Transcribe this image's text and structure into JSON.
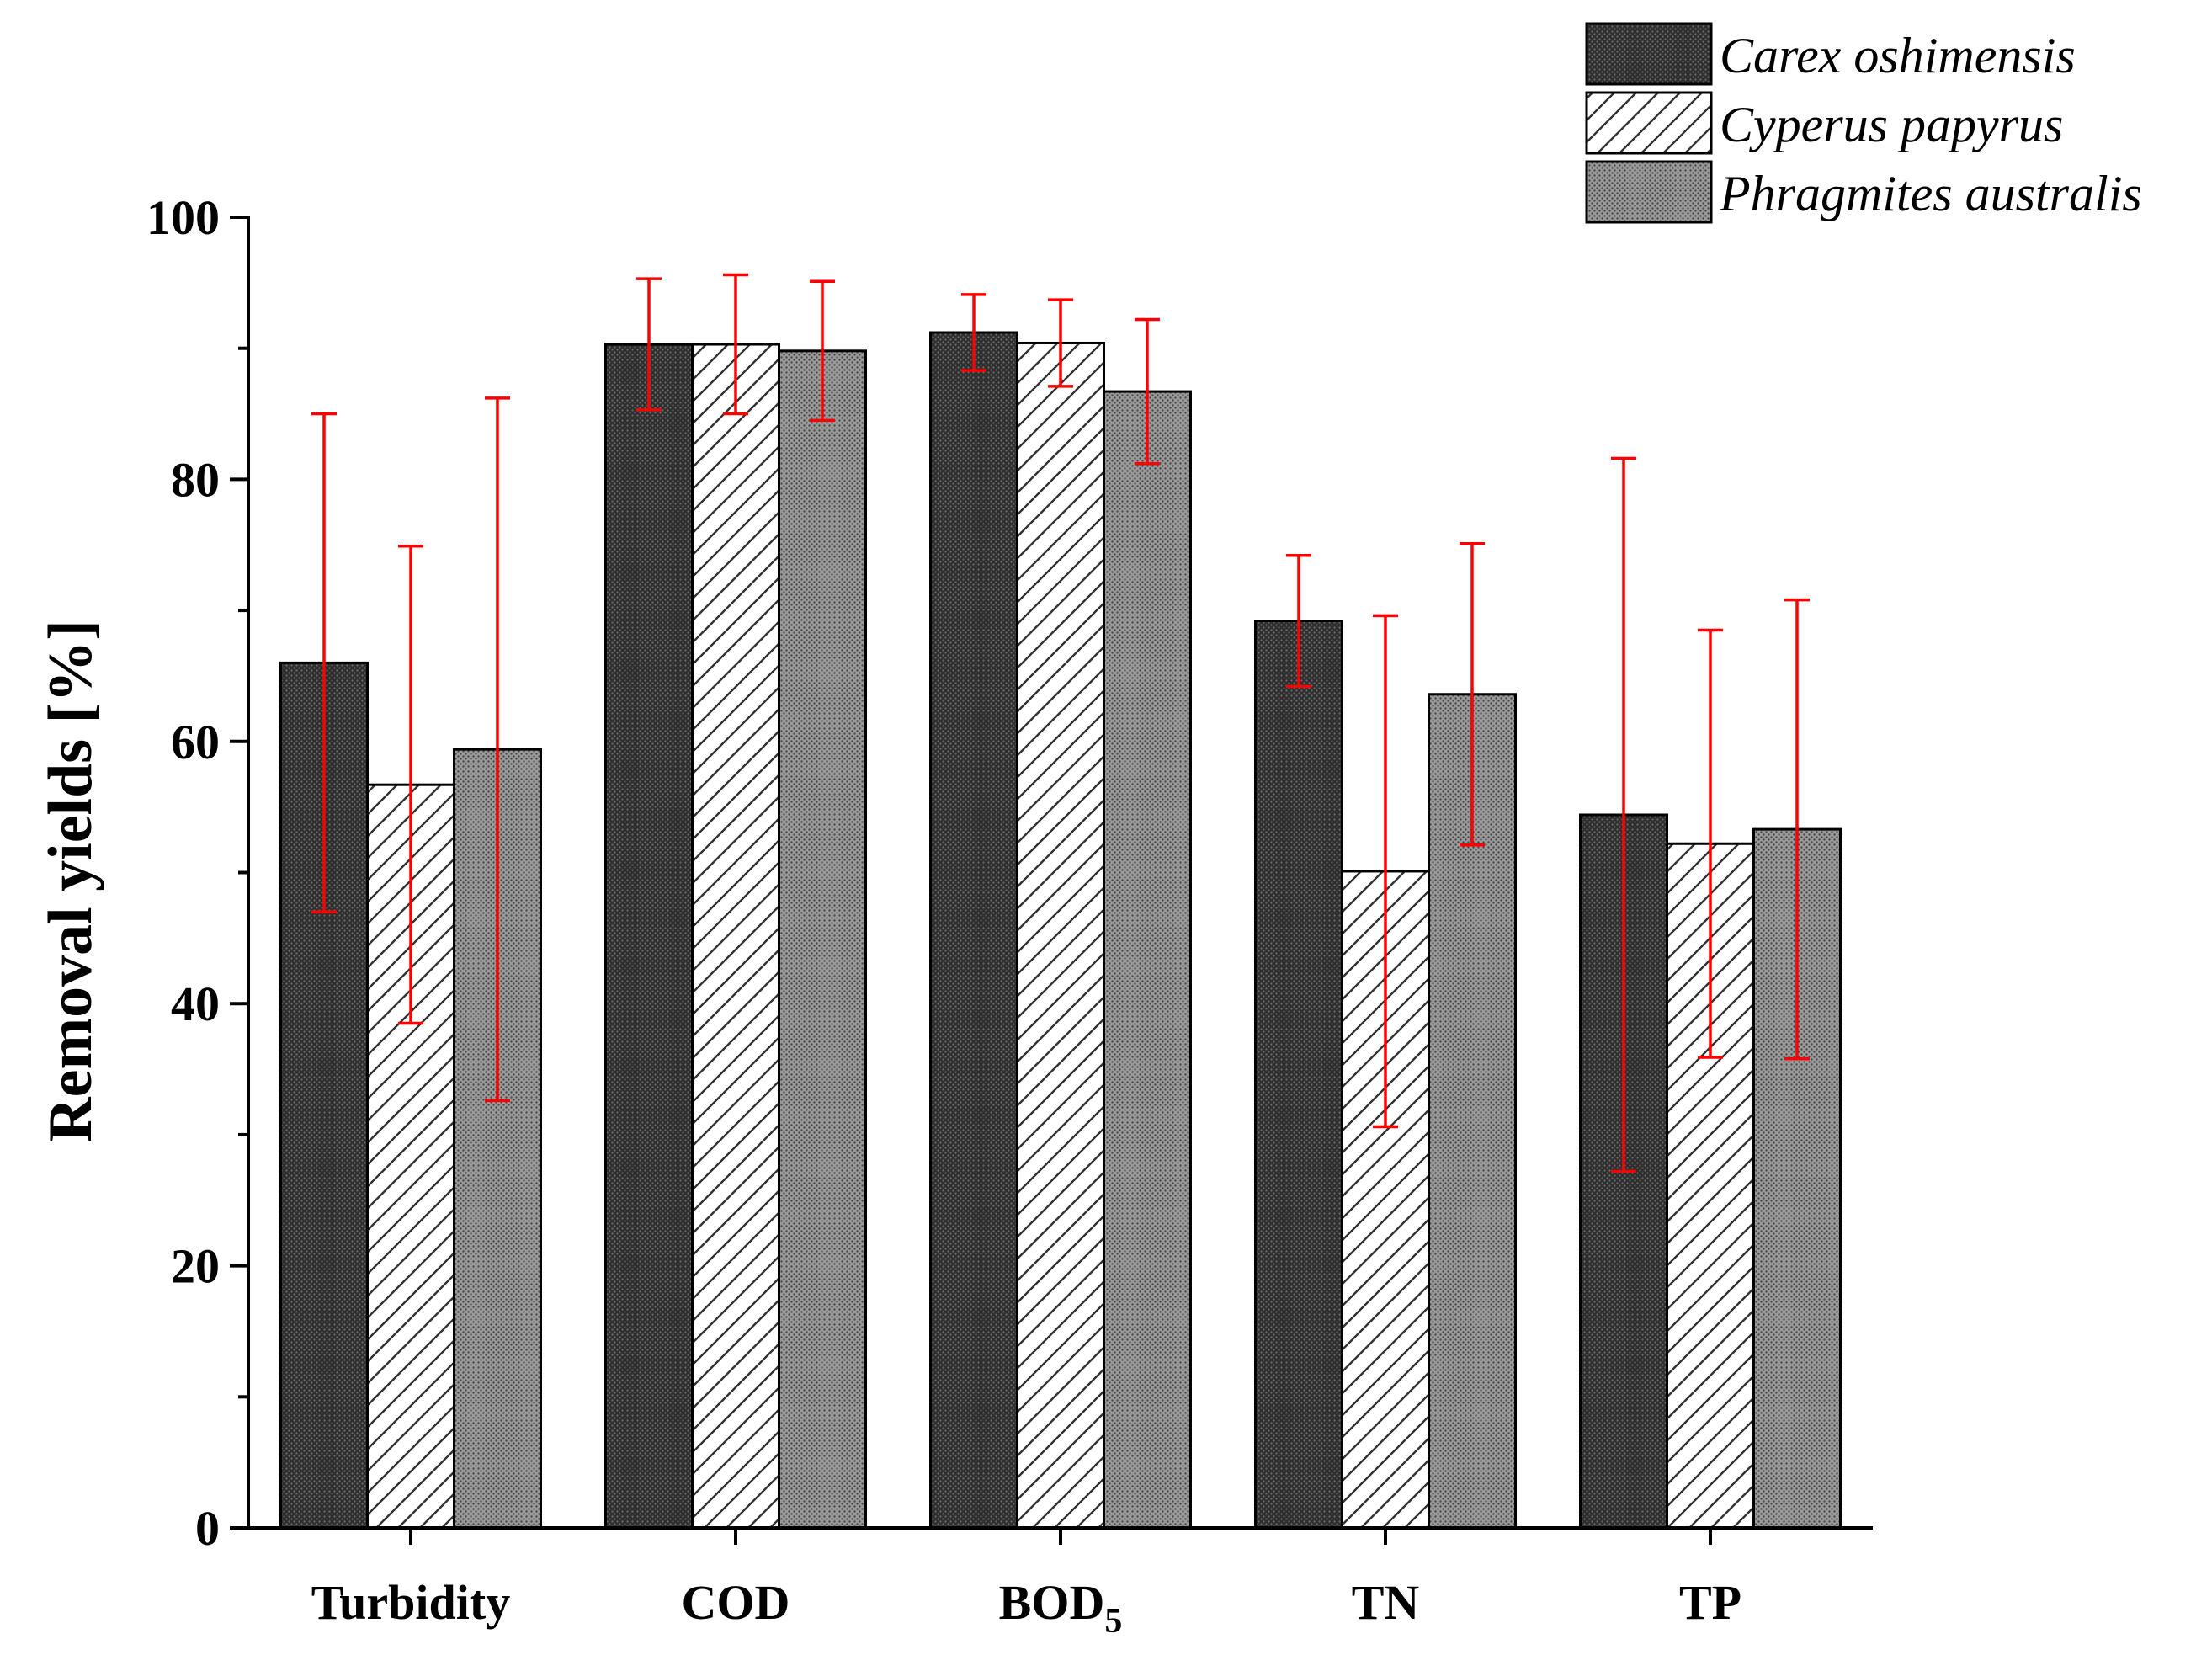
{
  "chart_data": {
    "type": "bar",
    "title": "",
    "xlabel": "",
    "ylabel": "Removal yields [%]",
    "ylim": [
      0,
      100
    ],
    "yticks": [
      0,
      20,
      40,
      60,
      80,
      100
    ],
    "grid": false,
    "legend_position": "top-right",
    "categories": [
      {
        "label": "Turbidity",
        "subscript": ""
      },
      {
        "label": "COD",
        "subscript": ""
      },
      {
        "label": "BOD",
        "subscript": "5"
      },
      {
        "label": "TN",
        "subscript": ""
      },
      {
        "label": "TP",
        "subscript": ""
      }
    ],
    "series": [
      {
        "name": "Carex oshimensis",
        "fill": "dark-dotted",
        "values": [
          66.0,
          90.3,
          91.2,
          69.2,
          54.4
        ],
        "errors": [
          19.0,
          5.0,
          2.9,
          5.0,
          27.2
        ]
      },
      {
        "name": "Cyperus papyrus",
        "fill": "hatched",
        "values": [
          56.7,
          90.3,
          90.4,
          50.1,
          52.2
        ],
        "errors": [
          18.2,
          5.3,
          3.3,
          19.5,
          16.3
        ]
      },
      {
        "name": "Phragmites australis",
        "fill": "grey-dotted",
        "values": [
          59.4,
          89.8,
          86.7,
          63.6,
          53.3
        ],
        "errors": [
          26.8,
          5.3,
          5.5,
          11.5,
          17.5
        ]
      }
    ],
    "colors": {
      "error_bar": "#ff0000",
      "axis": "#000000",
      "dark_fill": "#3a3a3a",
      "grey_fill": "#8c8c8c",
      "hatch_line": "#333333"
    }
  }
}
